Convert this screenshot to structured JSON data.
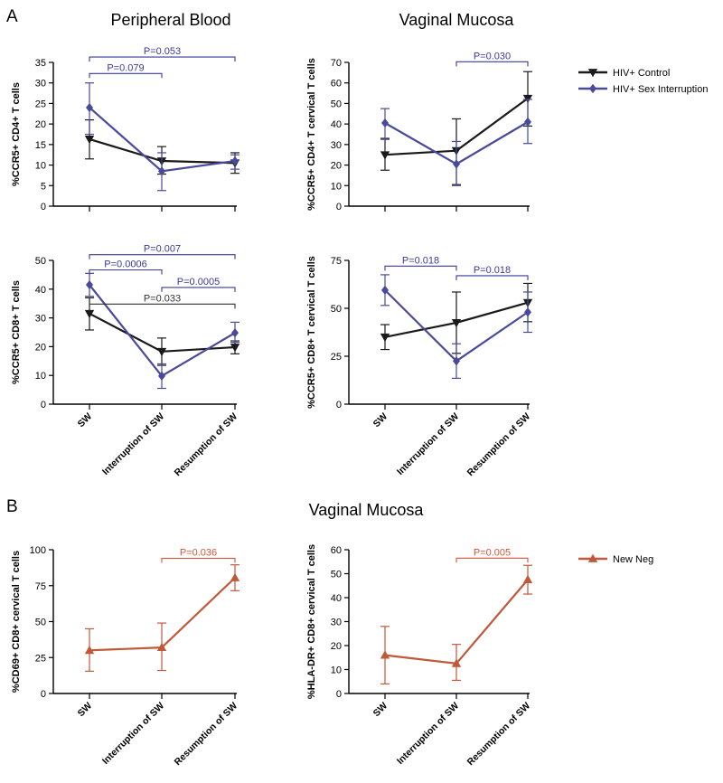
{
  "panel_labels": {
    "a": "A",
    "b": "B"
  },
  "section_titles": {
    "peripheral_blood": "Peripheral Blood",
    "vaginal_mucosa_top": "Vaginal Mucosa",
    "vaginal_mucosa_bottom": "Vaginal Mucosa"
  },
  "colors": {
    "control": "#1a1a1a",
    "interruption": "#4a4a9c",
    "new_neg": "#c0583a",
    "axis": "#000000",
    "pvalue_blue": "#3a3a9a",
    "pvalue_black": "#333333",
    "pvalue_orange": "#d0563a"
  },
  "legends": {
    "top": [
      {
        "label": "HIV+ Control",
        "series": "control"
      },
      {
        "label": "HIV+ Sex Interruption",
        "series": "interruption"
      }
    ],
    "bottom": [
      {
        "label": "New Neg",
        "series": "new_neg"
      }
    ]
  },
  "chart_data": [
    {
      "id": "pb-cd4",
      "type": "line",
      "ylabel": "%CCR5+ CD4+ T cells",
      "ylim": [
        0,
        35
      ],
      "yticks": [
        0,
        5,
        10,
        15,
        20,
        25,
        30,
        35
      ],
      "categories": [
        "SW",
        "Interruption of SW",
        "Resumption of SW"
      ],
      "series": [
        {
          "name": "HIV+ Control",
          "key": "control",
          "marker": "tri-down",
          "values": [
            16.3,
            11.0,
            10.5
          ],
          "err_low": [
            11.5,
            7.8,
            8.0
          ],
          "err_high": [
            21.0,
            14.5,
            13.0
          ]
        },
        {
          "name": "HIV+ Sex Interruption",
          "key": "interruption",
          "marker": "diamond",
          "values": [
            24.0,
            8.5,
            11.0
          ],
          "err_low": [
            17.5,
            3.8,
            9.0
          ],
          "err_high": [
            30.0,
            13.0,
            12.5
          ]
        }
      ],
      "pvalues": [
        {
          "text": "P=0.079",
          "from": 0,
          "to": 1,
          "yval": 32.3,
          "color": "pvalue_blue"
        },
        {
          "text": "P=0.053",
          "from": 0,
          "to": 2,
          "yval": 36.3,
          "color": "pvalue_blue"
        }
      ],
      "show_xlabels": false
    },
    {
      "id": "vm-cd4",
      "type": "line",
      "ylabel": "%CCR5+ CD4+ T cervical T cells",
      "ylim": [
        0,
        70
      ],
      "yticks": [
        0,
        10,
        20,
        30,
        40,
        50,
        60,
        70
      ],
      "categories": [
        "SW",
        "Interruption of SW",
        "Resumption of SW"
      ],
      "series": [
        {
          "name": "HIV+ Control",
          "key": "control",
          "marker": "tri-down",
          "values": [
            25.0,
            27.0,
            52.5
          ],
          "err_low": [
            17.5,
            10.5,
            39.0
          ],
          "err_high": [
            33.0,
            42.5,
            65.5
          ]
        },
        {
          "name": "HIV+ Sex Interruption",
          "key": "interruption",
          "marker": "diamond",
          "values": [
            40.5,
            20.5,
            41.0
          ],
          "err_low": [
            32.5,
            10.0,
            30.5
          ],
          "err_high": [
            47.5,
            31.5,
            52.0
          ]
        }
      ],
      "pvalues": [
        {
          "text": "P=0.030",
          "from": 1,
          "to": 2,
          "yval": 70.3,
          "color": "pvalue_blue"
        }
      ],
      "show_xlabels": false
    },
    {
      "id": "pb-cd8",
      "type": "line",
      "ylabel": "%CCR5+ CD8+ T cells",
      "ylim": [
        0,
        50
      ],
      "yticks": [
        0,
        10,
        20,
        30,
        40,
        50
      ],
      "categories": [
        "SW",
        "Interruption of SW",
        "Resumption of SW"
      ],
      "series": [
        {
          "name": "HIV+ Control",
          "key": "control",
          "marker": "tri-down",
          "values": [
            31.5,
            18.3,
            19.8
          ],
          "err_low": [
            25.8,
            13.5,
            17.5
          ],
          "err_high": [
            37.0,
            23.0,
            22.0
          ]
        },
        {
          "name": "HIV+ Sex Interruption",
          "key": "interruption",
          "marker": "diamond",
          "values": [
            41.5,
            9.8,
            24.8
          ],
          "err_low": [
            37.5,
            5.5,
            21.5
          ],
          "err_high": [
            45.5,
            14.0,
            28.5
          ]
        }
      ],
      "pvalues": [
        {
          "text": "P=0.0006",
          "from": 0,
          "to": 1,
          "yval": 46.7,
          "color": "pvalue_blue"
        },
        {
          "text": "P=0.007",
          "from": 0,
          "to": 2,
          "yval": 52.0,
          "color": "pvalue_blue"
        },
        {
          "text": "P=0.0005",
          "from": 1,
          "to": 2,
          "yval": 40.6,
          "color": "pvalue_blue"
        },
        {
          "text": "P=0.033",
          "from": 0,
          "to": 2,
          "yval": 34.8,
          "color": "pvalue_black"
        }
      ],
      "show_xlabels": true
    },
    {
      "id": "vm-cd8",
      "type": "line",
      "ylabel": "%CCR5+ CD8+ T cervical T cells",
      "ylim": [
        0,
        75
      ],
      "yticks": [
        0,
        25,
        50,
        75
      ],
      "categories": [
        "SW",
        "Interruption of SW",
        "Resumption of SW"
      ],
      "series": [
        {
          "name": "HIV+ Control",
          "key": "control",
          "marker": "tri-down",
          "values": [
            35.0,
            42.5,
            53.0
          ],
          "err_low": [
            28.5,
            26.5,
            43.0
          ],
          "err_high": [
            41.5,
            58.5,
            63.0
          ]
        },
        {
          "name": "HIV+ Sex Interruption",
          "key": "interruption",
          "marker": "diamond",
          "values": [
            59.5,
            22.5,
            48.0
          ],
          "err_low": [
            51.5,
            13.5,
            37.5
          ],
          "err_high": [
            67.5,
            31.5,
            58.5
          ]
        }
      ],
      "pvalues": [
        {
          "text": "P=0.018",
          "from": 0,
          "to": 1,
          "yval": 72.0,
          "color": "pvalue_blue"
        },
        {
          "text": "P=0.018",
          "from": 1,
          "to": 2,
          "yval": 67.0,
          "color": "pvalue_blue"
        }
      ],
      "show_xlabels": true
    },
    {
      "id": "vm-cd69",
      "type": "line",
      "ylabel": "%CD69+ CD8+ cervical T cells",
      "ylim": [
        0,
        100
      ],
      "yticks": [
        0,
        25,
        50,
        75,
        100
      ],
      "categories": [
        "SW",
        "Interruption of SW",
        "Resumption of SW"
      ],
      "series": [
        {
          "name": "New Neg",
          "key": "new_neg",
          "marker": "tri-up",
          "values": [
            30.0,
            32.0,
            80.5
          ],
          "err_low": [
            15.5,
            16.0,
            71.5
          ],
          "err_high": [
            45.0,
            49.0,
            89.5
          ]
        }
      ],
      "pvalues": [
        {
          "text": "P=0.036",
          "from": 1,
          "to": 2,
          "yval": 94.0,
          "color": "pvalue_orange"
        }
      ],
      "show_xlabels": true
    },
    {
      "id": "vm-hladr",
      "type": "line",
      "ylabel": "%HLA-DR+ CD8+ cervical T cells",
      "ylim": [
        0,
        60
      ],
      "yticks": [
        0,
        10,
        20,
        30,
        40,
        50,
        60
      ],
      "categories": [
        "SW",
        "Interruption of SW",
        "Resumption of SW"
      ],
      "series": [
        {
          "name": "New Neg",
          "key": "new_neg",
          "marker": "tri-up",
          "values": [
            16.0,
            12.5,
            47.5
          ],
          "err_low": [
            4.0,
            5.5,
            41.5
          ],
          "err_high": [
            28.0,
            20.5,
            53.5
          ]
        }
      ],
      "pvalues": [
        {
          "text": "P=0.005",
          "from": 1,
          "to": 2,
          "yval": 56.5,
          "color": "pvalue_orange"
        }
      ],
      "show_xlabels": true
    }
  ]
}
